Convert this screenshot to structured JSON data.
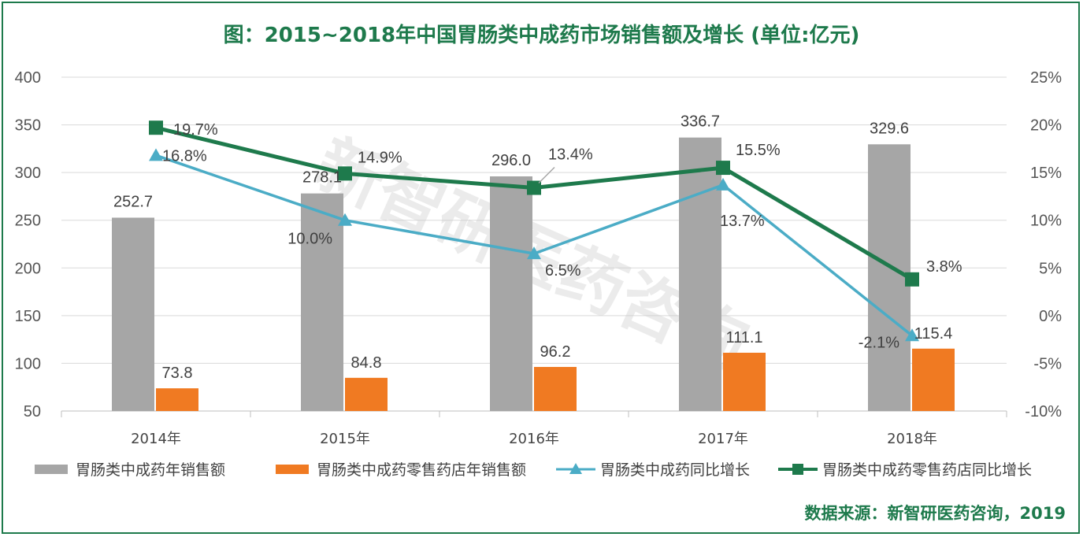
{
  "title": "图：2015~2018年中国胃肠类中成药市场销售额及增长 (单位:亿元)",
  "source": "数据来源：新智研医药咨询，2019",
  "watermark": "新智研医药咨询",
  "chart_data": {
    "type": "bar",
    "categories": [
      "2014年",
      "2015年",
      "2016年",
      "2017年",
      "2018年"
    ],
    "y_left": {
      "ticks": [
        "50",
        "100",
        "150",
        "200",
        "250",
        "300",
        "350",
        "400"
      ],
      "ylim": [
        50,
        400
      ]
    },
    "y_right": {
      "ticks": [
        "-10%",
        "-5%",
        "0%",
        "5%",
        "10%",
        "15%",
        "20%",
        "25%"
      ],
      "ylim": [
        -10,
        25
      ]
    },
    "grid": true,
    "legend_position": "bottom",
    "series": [
      {
        "name": "胃肠类中成药年销售额",
        "kind": "bar",
        "axis": "left",
        "color": "#a6a6a6",
        "values": [
          252.7,
          278.1,
          296.0,
          336.7,
          329.6
        ],
        "labels": [
          "252.7",
          "278.1",
          "296.0",
          "336.7",
          "329.6"
        ]
      },
      {
        "name": "胃肠类中成药零售药店年销售额",
        "kind": "bar",
        "axis": "left",
        "color": "#f07a22",
        "values": [
          73.8,
          84.8,
          96.2,
          111.1,
          115.4
        ],
        "labels": [
          "73.8",
          "84.8",
          "96.2",
          "111.1",
          "115.4"
        ]
      },
      {
        "name": "胃肠类中成药同比增长",
        "kind": "line",
        "axis": "right",
        "color": "#4bacc6",
        "marker": "triangle",
        "values": [
          16.8,
          10.0,
          6.5,
          13.7,
          -2.1
        ],
        "labels": [
          "16.8%",
          "10.0%",
          "6.5%",
          "13.7%",
          "-2.1%"
        ]
      },
      {
        "name": "胃肠类中成药零售药店同比增长",
        "kind": "line",
        "axis": "right",
        "color": "#1e7a4c",
        "marker": "square",
        "values": [
          19.7,
          14.9,
          13.4,
          15.5,
          3.8
        ],
        "labels": [
          "19.7%",
          "14.9%",
          "13.4%",
          "15.5%",
          "3.8%"
        ]
      }
    ]
  }
}
